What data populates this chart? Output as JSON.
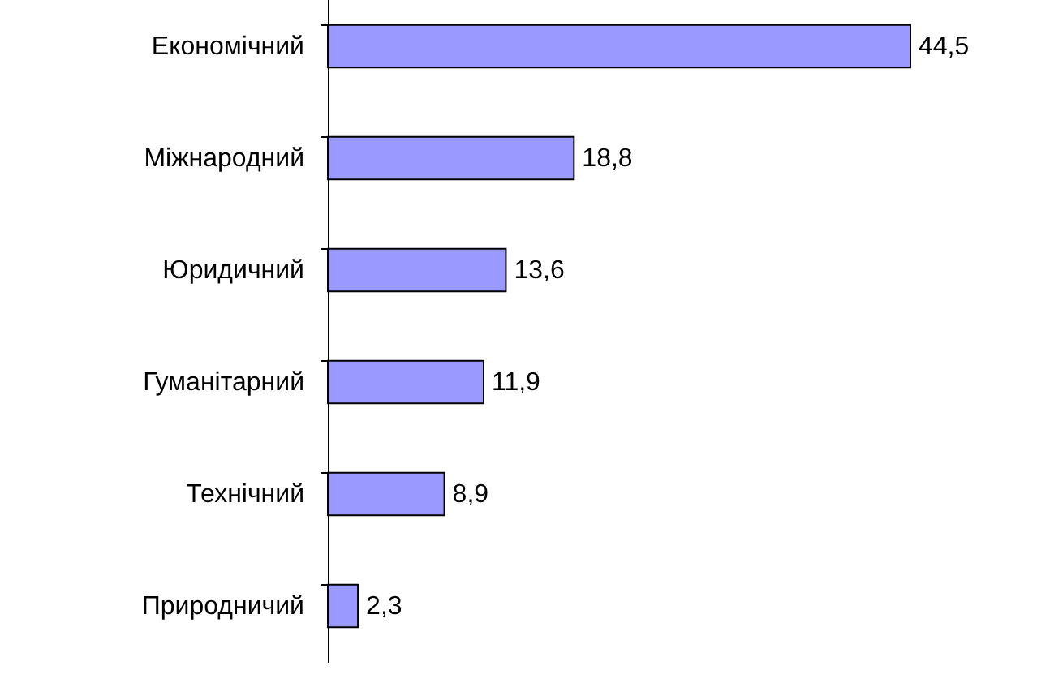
{
  "chart_data": {
    "type": "bar",
    "orientation": "horizontal",
    "categories": [
      "Економічний",
      "Міжнародний",
      "Юридичний",
      "Гуманітарний",
      "Технічний",
      "Природничий"
    ],
    "values": [
      44.5,
      18.8,
      13.6,
      11.9,
      8.9,
      2.3
    ],
    "value_labels": [
      "44,5",
      "18,8",
      "13,6",
      "11,9",
      "8,9",
      "2,3"
    ],
    "color": "#9999ff"
  }
}
